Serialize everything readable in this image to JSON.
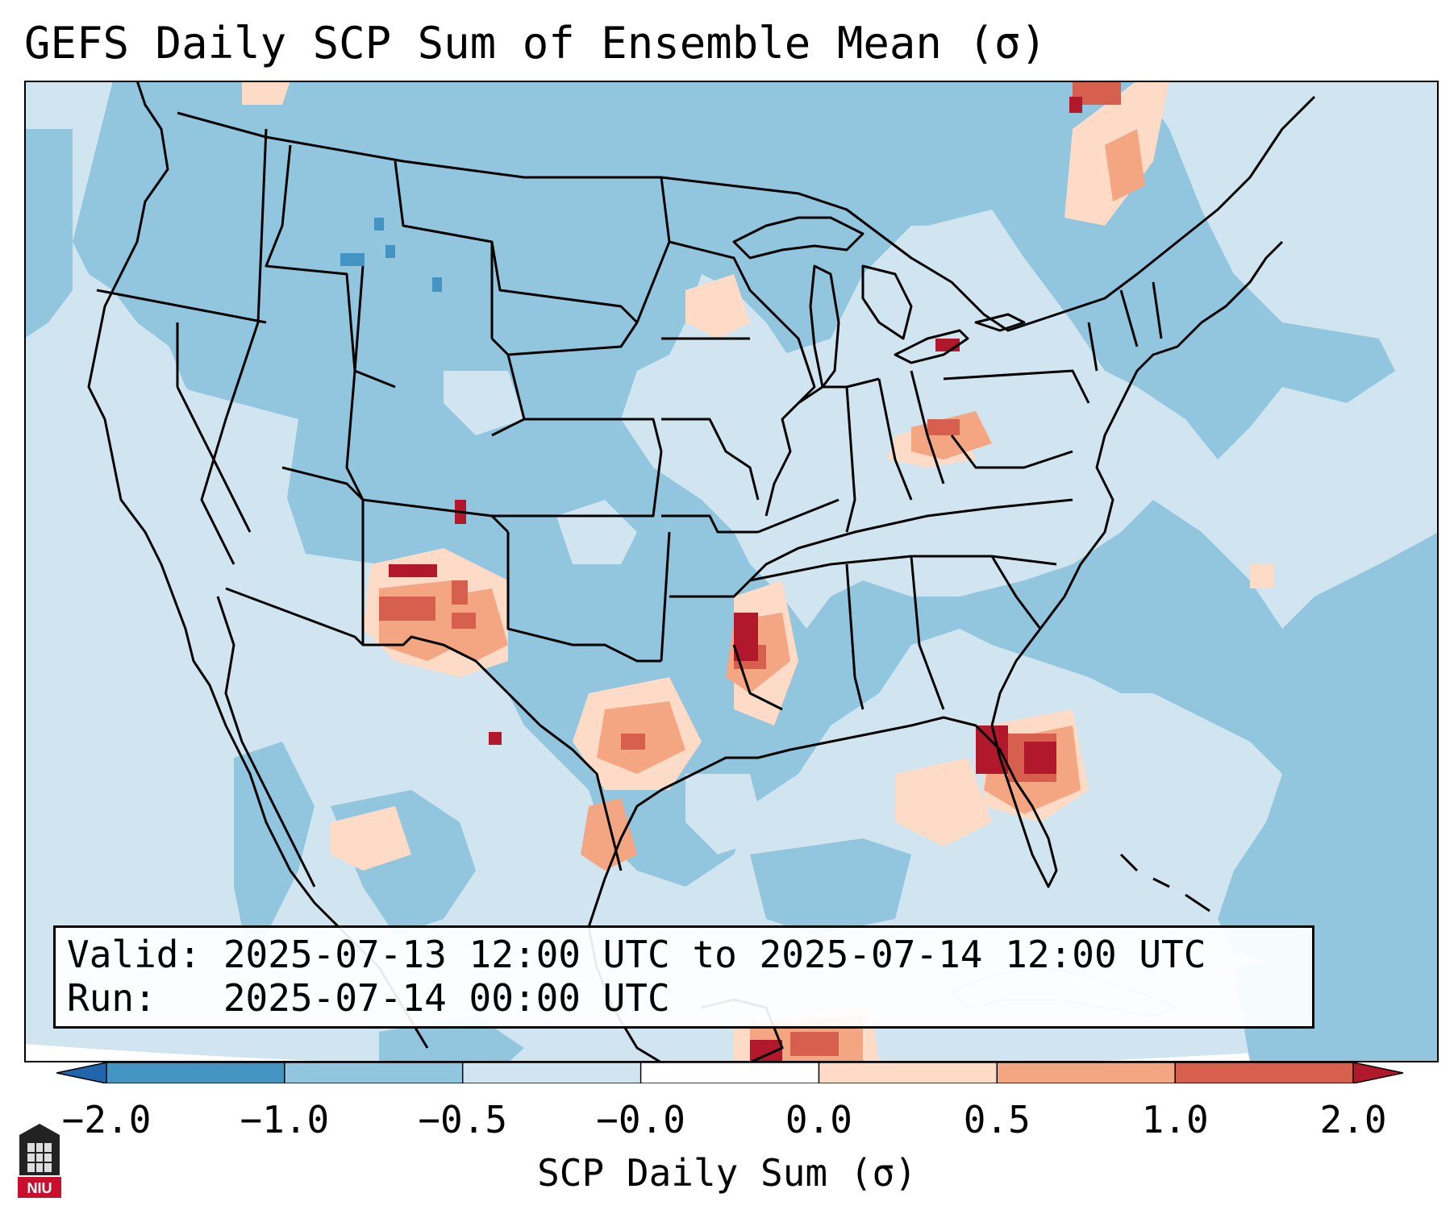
{
  "title": "GEFS Daily SCP Sum of Ensemble Mean (σ)",
  "info": {
    "valid_line": "Valid: 2025-07-13 12:00 UTC to 2025-07-14 12:00 UTC",
    "run_line": "Run:   2025-07-14 00:00 UTC"
  },
  "colorbar": {
    "label": "SCP Daily Sum (σ)",
    "ticks": [
      "−2.0",
      "−1.0",
      "−0.5",
      "−0.0",
      "0.0",
      "0.5",
      "1.0",
      "2.0"
    ],
    "colors": [
      "#4393c3",
      "#92c5de",
      "#d1e5f0",
      "#ffffff",
      "#fddbc7",
      "#f4a582",
      "#d6604d"
    ],
    "under_color": "#2166ac",
    "over_color": "#b2182b"
  },
  "colors": {
    "background_field": "#d1e5f0",
    "negative_field": "#92c5de",
    "strong_negative": "#4393c3",
    "borders": "#000000"
  },
  "logo": {
    "text": "NIU"
  },
  "map_features": {
    "scp_hotspots": [
      {
        "name": "Florida peninsula",
        "level": 2.0
      },
      {
        "name": "Lower Mississippi valley",
        "level": 2.0
      },
      {
        "name": "Lake Erie",
        "level": 1.0
      },
      {
        "name": "Northern New Mexico",
        "level": 2.0
      },
      {
        "name": "South Texas",
        "level": 1.0
      },
      {
        "name": "Southern Quebec",
        "level": 1.0
      },
      {
        "name": "Yucatan Channel",
        "level": 2.0
      }
    ]
  }
}
